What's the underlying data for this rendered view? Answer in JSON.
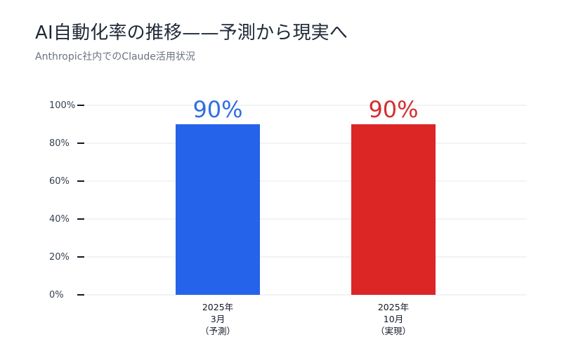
{
  "title": "AI自動化率の推移——予測から現実へ",
  "subtitle": "Anthropic社内でのClaude活用状況",
  "chart_data": {
    "type": "bar",
    "categories": [
      [
        "2025年",
        "3月",
        "（予測）"
      ],
      [
        "2025年",
        "10月",
        "（実現）"
      ]
    ],
    "values": [
      90,
      90
    ],
    "value_labels": [
      "90%",
      "90%"
    ],
    "colors": [
      "#2563eb",
      "#dc2626"
    ],
    "label_colors": [
      "#2f6fe0",
      "#d32f2f"
    ],
    "yticks": [
      "0%",
      "20%",
      "40%",
      "60%",
      "80%",
      "100%"
    ],
    "ylim": [
      0,
      100
    ],
    "grid": true,
    "legend": "none"
  }
}
